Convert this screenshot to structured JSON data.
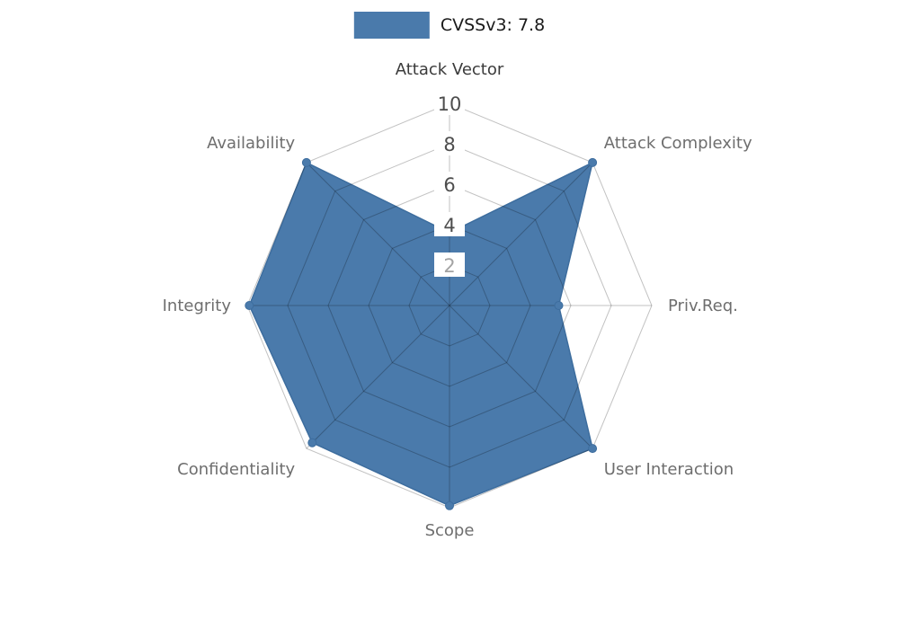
{
  "chart_data": {
    "type": "radar",
    "title": "CVSSv3: 7.8",
    "categories": [
      "Attack Vector",
      "Attack Complexity",
      "Priv.Req.",
      "User Interaction",
      "Scope",
      "Confidentiality",
      "Integrity",
      "Availability"
    ],
    "values": [
      3.6,
      10,
      5.4,
      10,
      9.9,
      9.6,
      9.9,
      10
    ],
    "scale": {
      "min": 0,
      "max": 10,
      "ticks": [
        2,
        4,
        6,
        8,
        10
      ]
    },
    "legend_position": "top-center",
    "grid": true,
    "axis_label_colors": [
      "#3b3b3b",
      "#6e6e6e",
      "#6e6e6e",
      "#6e6e6e",
      "#6e6e6e",
      "#6e6e6e",
      "#6e6e6e",
      "#6e6e6e"
    ],
    "colors": {
      "series_fill": "#4a7aab",
      "series_edge": "#3d6d9e",
      "grid_line": "rgba(0,0,0,0.24)",
      "tick_text": "#4d4d4d",
      "tick_text_min": "#a3a3a3",
      "tick_box": "#ffffff",
      "axis_label": "#6e6e6e",
      "axis_label_primary": "#3b3b3b",
      "title_text": "#1a1a1a",
      "background": "#ffffff"
    }
  }
}
